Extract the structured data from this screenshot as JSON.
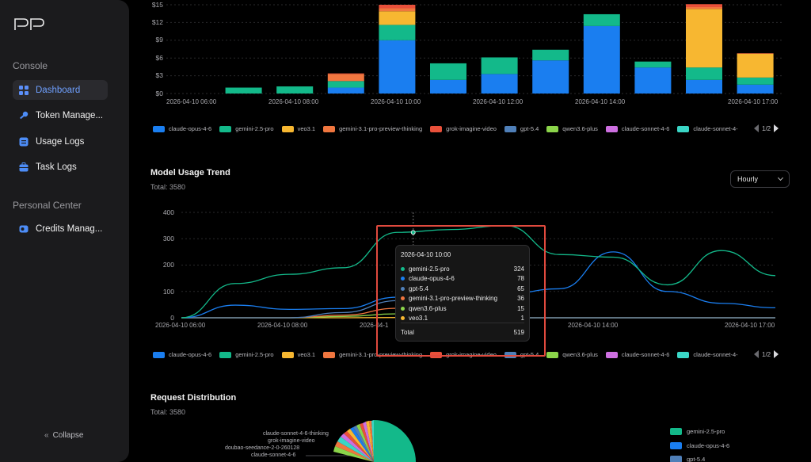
{
  "sidebar": {
    "logo_text": "PP",
    "console_label": "Console",
    "items": [
      {
        "label": "Dashboard"
      },
      {
        "label": "Token Manage..."
      },
      {
        "label": "Usage Logs"
      },
      {
        "label": "Task Logs"
      }
    ],
    "personal_label": "Personal Center",
    "personal_items": [
      {
        "label": "Credits Manag..."
      }
    ],
    "collapse_label": "Collapse"
  },
  "cost_chart": {
    "y_ticks": [
      "$15",
      "$12",
      "$9",
      "$6",
      "$3",
      "$0"
    ],
    "x_ticks": [
      "2026-04-10 06:00",
      "2026-04-10 08:00",
      "2026-04-10 10:00",
      "2026-04-10 12:00",
      "2026-04-10 14:00",
      "2026-04-10 17:00"
    ]
  },
  "legend_items": [
    {
      "name": "claude-opus-4-6",
      "color": "#1a7ef0"
    },
    {
      "name": "gemini-2.5-pro",
      "color": "#13b98a"
    },
    {
      "name": "veo3.1",
      "color": "#f7b731"
    },
    {
      "name": "gemini-3.1-pro-preview-thinking",
      "color": "#f0763f"
    },
    {
      "name": "grok-imagine-video",
      "color": "#e8503a"
    },
    {
      "name": "gpt-5.4",
      "color": "#4f7fb8"
    },
    {
      "name": "qwen3.6-plus",
      "color": "#8bd44a"
    },
    {
      "name": "claude-sonnet-4-6",
      "color": "#cd6fe0"
    },
    {
      "name": "claude-sonnet-4-",
      "color": "#3ad6c6"
    }
  ],
  "pager": {
    "text": "1/2"
  },
  "trend": {
    "title": "Model Usage Trend",
    "total": "Total: 3580",
    "select_value": "Hourly",
    "y_ticks": [
      "400",
      "300",
      "200",
      "100",
      "0"
    ],
    "x_ticks": [
      "2026-04-10 06:00",
      "2026-04-10 08:00",
      "2026-04-1",
      "2026-04-10 14:00",
      "2026-04-10 17:00"
    ],
    "tooltip": {
      "title": "2026-04-10 10:00",
      "rows": [
        {
          "name": "gemini-2.5-pro",
          "value": "324",
          "color": "#13b98a"
        },
        {
          "name": "claude-opus-4-6",
          "value": "78",
          "color": "#1a7ef0"
        },
        {
          "name": "gpt-5.4",
          "value": "65",
          "color": "#4f7fb8"
        },
        {
          "name": "gemini-3.1-pro-preview-thinking",
          "value": "36",
          "color": "#f0763f"
        },
        {
          "name": "qwen3.6-plus",
          "value": "15",
          "color": "#8bd44a"
        },
        {
          "name": "veo3.1",
          "value": "1",
          "color": "#f7b731"
        }
      ],
      "total_label": "Total",
      "total_value": "519"
    }
  },
  "distribution": {
    "title": "Request Distribution",
    "total": "Total: 3580",
    "pie_labels": [
      "claude-sonnet-4-6-thinking",
      "grok-imagine-video",
      "doubao-seedance-2-0-260128",
      "claude-sonnet-4-6"
    ],
    "legend": [
      {
        "name": "gemini-2.5-pro",
        "color": "#13b98a"
      },
      {
        "name": "claude-opus-4-6",
        "color": "#1a7ef0"
      },
      {
        "name": "gpt-5.4",
        "color": "#4f7fb8"
      }
    ]
  },
  "chart_data": [
    {
      "type": "bar",
      "ylim": [
        0,
        15
      ],
      "categories": [
        "06:00",
        "07:00",
        "08:00",
        "09:00",
        "10:00",
        "11:00",
        "12:00",
        "13:00",
        "14:00",
        "15:00",
        "16:00",
        "17:00"
      ],
      "series": [
        {
          "name": "claude-opus-4-6",
          "values": [
            0,
            0,
            0,
            1.0,
            9.0,
            2.3,
            3.3,
            5.6,
            11.4,
            4.4,
            2.3,
            1.5
          ]
        },
        {
          "name": "gemini-2.5-pro",
          "values": [
            0,
            1.0,
            1.2,
            1.1,
            2.6,
            2.8,
            2.8,
            1.8,
            2.0,
            1.0,
            2.1,
            1.2
          ]
        },
        {
          "name": "veo3.1",
          "values": [
            0,
            0,
            0,
            0,
            2.3,
            0,
            0,
            0,
            0,
            0,
            9.9,
            4.0
          ]
        },
        {
          "name": "gemini-3.1-pro-preview-thinking",
          "values": [
            0,
            0,
            0,
            1.2,
            0.5,
            0,
            0,
            0,
            0,
            0,
            0.3,
            0.1
          ]
        },
        {
          "name": "grok-imagine-video",
          "values": [
            0,
            0,
            0,
            0.1,
            0.6,
            0,
            0,
            0,
            0,
            0,
            0.5,
            0
          ]
        }
      ]
    },
    {
      "type": "line",
      "title": "Model Usage Trend",
      "ylim": [
        0,
        400
      ],
      "x": [
        "06:00",
        "07:00",
        "08:00",
        "09:00",
        "10:00",
        "11:00",
        "12:00",
        "13:00",
        "14:00",
        "15:00",
        "16:00",
        "17:00"
      ],
      "series": [
        {
          "name": "gemini-2.5-pro",
          "values": [
            0,
            130,
            165,
            190,
            324,
            335,
            350,
            240,
            230,
            125,
            255,
            160
          ]
        },
        {
          "name": "claude-opus-4-6",
          "values": [
            0,
            48,
            32,
            35,
            78,
            80,
            90,
            110,
            250,
            100,
            55,
            38
          ]
        },
        {
          "name": "gpt-5.4",
          "values": [
            0,
            0,
            0,
            20,
            65,
            0,
            0,
            0,
            0,
            0,
            0,
            0
          ]
        },
        {
          "name": "gemini-3.1-pro-preview-thinking",
          "values": [
            0,
            0,
            0,
            10,
            36,
            0,
            0,
            0,
            0,
            0,
            0,
            0
          ]
        },
        {
          "name": "qwen3.6-plus",
          "values": [
            0,
            0,
            0,
            5,
            15,
            0,
            0,
            0,
            0,
            0,
            0,
            0
          ]
        },
        {
          "name": "veo3.1",
          "values": [
            0,
            0,
            0,
            0,
            1,
            0,
            0,
            0,
            0,
            0,
            0,
            0
          ]
        }
      ]
    }
  ]
}
